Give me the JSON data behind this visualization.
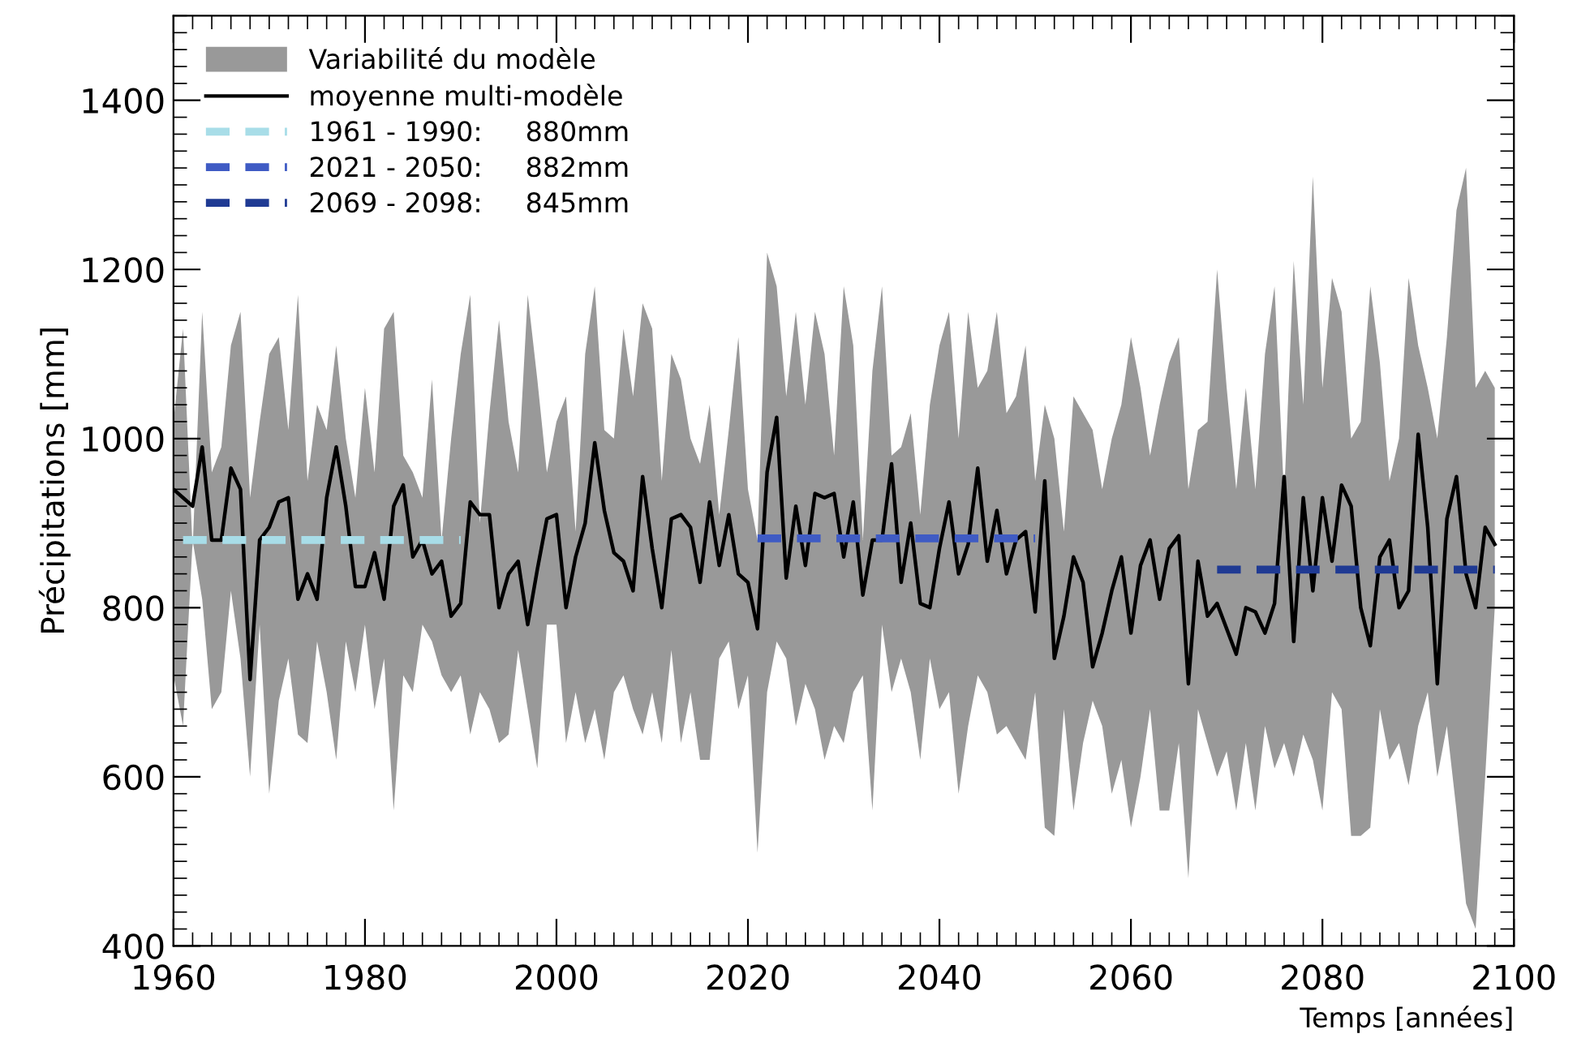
{
  "chart_data": {
    "type": "line",
    "xlabel": "Temps [années]",
    "ylabel": "Précipitations [mm]",
    "xlim": [
      1960,
      2100
    ],
    "xticks": [
      1960,
      1980,
      2000,
      2020,
      2040,
      2060,
      2080,
      2100
    ],
    "ylim": [
      400,
      1500
    ],
    "yticks": [
      400,
      600,
      800,
      1000,
      1200,
      1400
    ],
    "grid": false,
    "legend": "top left",
    "annotations": [
      "Variabilité du modèle"
    ],
    "series": [
      {
        "name": "moyenne multi-modèle",
        "color": "#000000",
        "line_style": "solid",
        "x": [
          1960,
          1961,
          1962,
          1963,
          1964,
          1965,
          1966,
          1967,
          1968,
          1969,
          1970,
          1971,
          1972,
          1973,
          1974,
          1975,
          1976,
          1977,
          1978,
          1979,
          1980,
          1981,
          1982,
          1983,
          1984,
          1985,
          1986,
          1987,
          1988,
          1989,
          1990,
          1991,
          1992,
          1993,
          1994,
          1995,
          1996,
          1997,
          1998,
          1999,
          2000,
          2001,
          2002,
          2003,
          2004,
          2005,
          2006,
          2007,
          2008,
          2009,
          2010,
          2011,
          2012,
          2013,
          2014,
          2015,
          2016,
          2017,
          2018,
          2019,
          2020,
          2021,
          2022,
          2023,
          2024,
          2025,
          2026,
          2027,
          2028,
          2029,
          2030,
          2031,
          2032,
          2033,
          2034,
          2035,
          2036,
          2037,
          2038,
          2039,
          2040,
          2041,
          2042,
          2043,
          2044,
          2045,
          2046,
          2047,
          2048,
          2049,
          2050,
          2051,
          2052,
          2053,
          2054,
          2055,
          2056,
          2057,
          2058,
          2059,
          2060,
          2061,
          2062,
          2063,
          2064,
          2065,
          2066,
          2067,
          2068,
          2069,
          2070,
          2071,
          2072,
          2073,
          2074,
          2075,
          2076,
          2077,
          2078,
          2079,
          2080,
          2081,
          2082,
          2083,
          2084,
          2085,
          2086,
          2087,
          2088,
          2089,
          2090,
          2091,
          2092,
          2093,
          2094,
          2095,
          2096,
          2097,
          2098
        ],
        "values": [
          940,
          930,
          920,
          990,
          880,
          880,
          965,
          940,
          715,
          880,
          895,
          925,
          930,
          810,
          840,
          810,
          930,
          990,
          920,
          825,
          825,
          865,
          810,
          920,
          945,
          860,
          880,
          840,
          855,
          790,
          805,
          925,
          910,
          910,
          800,
          840,
          855,
          780,
          845,
          905,
          910,
          800,
          860,
          900,
          995,
          915,
          865,
          855,
          820,
          955,
          870,
          800,
          905,
          910,
          895,
          830,
          925,
          850,
          910,
          840,
          830,
          775,
          960,
          1025,
          835,
          920,
          850,
          935,
          930,
          935,
          860,
          925,
          815,
          880,
          880,
          970,
          830,
          900,
          805,
          800,
          870,
          925,
          840,
          875,
          965,
          855,
          915,
          840,
          880,
          890,
          795,
          950,
          740,
          790,
          860,
          830,
          730,
          770,
          820,
          860,
          770,
          850,
          880,
          810,
          870,
          885,
          710,
          855,
          790,
          805,
          775,
          745,
          800,
          795,
          770,
          805,
          955,
          760,
          930,
          820,
          930,
          855,
          945,
          920,
          800,
          755,
          860,
          880,
          800,
          820,
          1005,
          895,
          710,
          905,
          955,
          840,
          800,
          895,
          875
        ],
        "upper": [
          1020,
          1130,
          870,
          1150,
          960,
          990,
          1110,
          1150,
          930,
          1020,
          1100,
          1120,
          1010,
          1170,
          950,
          1040,
          1010,
          1110,
          1000,
          930,
          1060,
          960,
          1130,
          1150,
          980,
          960,
          930,
          1070,
          880,
          1000,
          1100,
          1170,
          900,
          1030,
          1140,
          1020,
          960,
          1170,
          1070,
          960,
          1020,
          1050,
          890,
          1100,
          1180,
          1010,
          1000,
          1130,
          1050,
          1160,
          1130,
          950,
          1100,
          1070,
          1000,
          970,
          1040,
          910,
          1010,
          1120,
          940,
          880,
          1220,
          1180,
          1050,
          1150,
          1040,
          1150,
          1100,
          980,
          1180,
          1110,
          880,
          1080,
          1180,
          980,
          990,
          1030,
          910,
          1040,
          1110,
          1150,
          1000,
          1150,
          1060,
          1080,
          1150,
          1030,
          1050,
          1110,
          950,
          1040,
          1000,
          890,
          1050,
          1030,
          1010,
          940,
          1000,
          1040,
          1120,
          1060,
          980,
          1040,
          1090,
          1120,
          940,
          1010,
          1020,
          1200,
          1060,
          940,
          1060,
          940,
          1100,
          1180,
          930,
          1210,
          1040,
          1310,
          1060,
          1190,
          1150,
          1000,
          1020,
          1180,
          1090,
          950,
          1000,
          1190,
          1110,
          1060,
          1000,
          1120,
          1270,
          1320,
          1060,
          1080,
          1060
        ],
        "lower": [
          720,
          660,
          880,
          810,
          680,
          700,
          820,
          740,
          600,
          780,
          580,
          690,
          740,
          650,
          640,
          760,
          700,
          620,
          760,
          700,
          780,
          680,
          740,
          560,
          720,
          700,
          780,
          760,
          720,
          700,
          720,
          650,
          700,
          680,
          640,
          650,
          750,
          680,
          610,
          780,
          780,
          640,
          700,
          640,
          680,
          620,
          700,
          720,
          680,
          650,
          700,
          640,
          750,
          640,
          700,
          620,
          620,
          740,
          760,
          680,
          720,
          510,
          700,
          760,
          740,
          660,
          710,
          680,
          620,
          660,
          640,
          700,
          720,
          560,
          780,
          700,
          740,
          700,
          620,
          740,
          680,
          700,
          580,
          660,
          720,
          700,
          650,
          660,
          640,
          620,
          700,
          540,
          530,
          680,
          560,
          640,
          690,
          660,
          580,
          620,
          540,
          600,
          680,
          560,
          560,
          640,
          480,
          680,
          640,
          600,
          630,
          560,
          640,
          560,
          660,
          610,
          640,
          600,
          650,
          620,
          560,
          700,
          680,
          530,
          530,
          540,
          680,
          620,
          640,
          590,
          660,
          700,
          600,
          660,
          560,
          450,
          420,
          600,
          800
        ]
      },
      {
        "name": "1961 - 1990:     880mm",
        "color": "#a8dde8",
        "line_style": "dashed",
        "x": [
          1961,
          1990
        ],
        "values": [
          880,
          880
        ]
      },
      {
        "name": "2021 - 2050:     882mm",
        "color": "#3f5bc4",
        "line_style": "dashed",
        "x": [
          2021,
          2050
        ],
        "values": [
          882,
          882
        ]
      },
      {
        "name": "2069 - 2098:     845mm",
        "color": "#1f3a93",
        "line_style": "dashed",
        "x": [
          2069,
          2098
        ],
        "values": [
          845,
          845
        ]
      }
    ]
  }
}
